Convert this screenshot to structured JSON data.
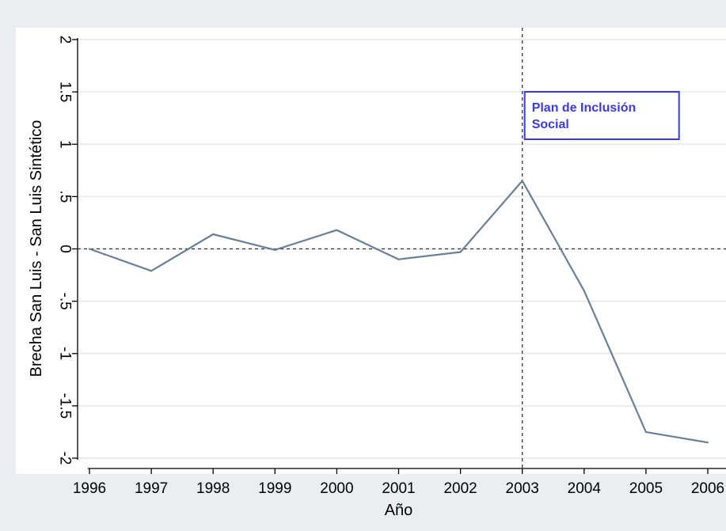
{
  "chart_data": {
    "type": "line",
    "title": "",
    "xlabel": "Año",
    "ylabel": "Brecha San Luis - San Luis Sintético",
    "x": [
      1996,
      1997,
      1998,
      1999,
      2000,
      2001,
      2002,
      2003,
      2004,
      2005,
      2006
    ],
    "series": [
      {
        "values": [
          0.0,
          -0.21,
          0.14,
          -0.01,
          0.18,
          -0.1,
          -0.03,
          0.65,
          -0.4,
          -1.75,
          -1.85
        ]
      }
    ],
    "xlim": [
      1996,
      2006
    ],
    "ylim": [
      -2,
      2
    ],
    "x_ticks": [
      "1996",
      "1997",
      "1998",
      "1999",
      "2000",
      "2001",
      "2002",
      "2003",
      "2004",
      "2005",
      "2006"
    ],
    "y_ticks": [
      {
        "value": 2,
        "label": "2"
      },
      {
        "value": 1.5,
        "label": "1.5"
      },
      {
        "value": 1,
        "label": "1"
      },
      {
        "value": 0.5,
        "label": ".5"
      },
      {
        "value": 0,
        "label": "0"
      },
      {
        "value": -0.5,
        "label": "-.5"
      },
      {
        "value": -1,
        "label": "-1"
      },
      {
        "value": -1.5,
        "label": "-1.5"
      },
      {
        "value": -2,
        "label": "-2"
      }
    ],
    "reference_lines": {
      "horizontal_y": 0,
      "vertical_x": 2003
    },
    "annotation": {
      "lines": [
        "Plan de Inclusión",
        "Social"
      ],
      "x": 2003
    },
    "grid": true,
    "colors": {
      "outer_background": "#eaeef2",
      "plot_background": "#ffffff",
      "gridline": "#e8edf1",
      "series_line": "#6b7f96",
      "annotation": "#3a3ae6",
      "reference_line": "#333333"
    }
  }
}
